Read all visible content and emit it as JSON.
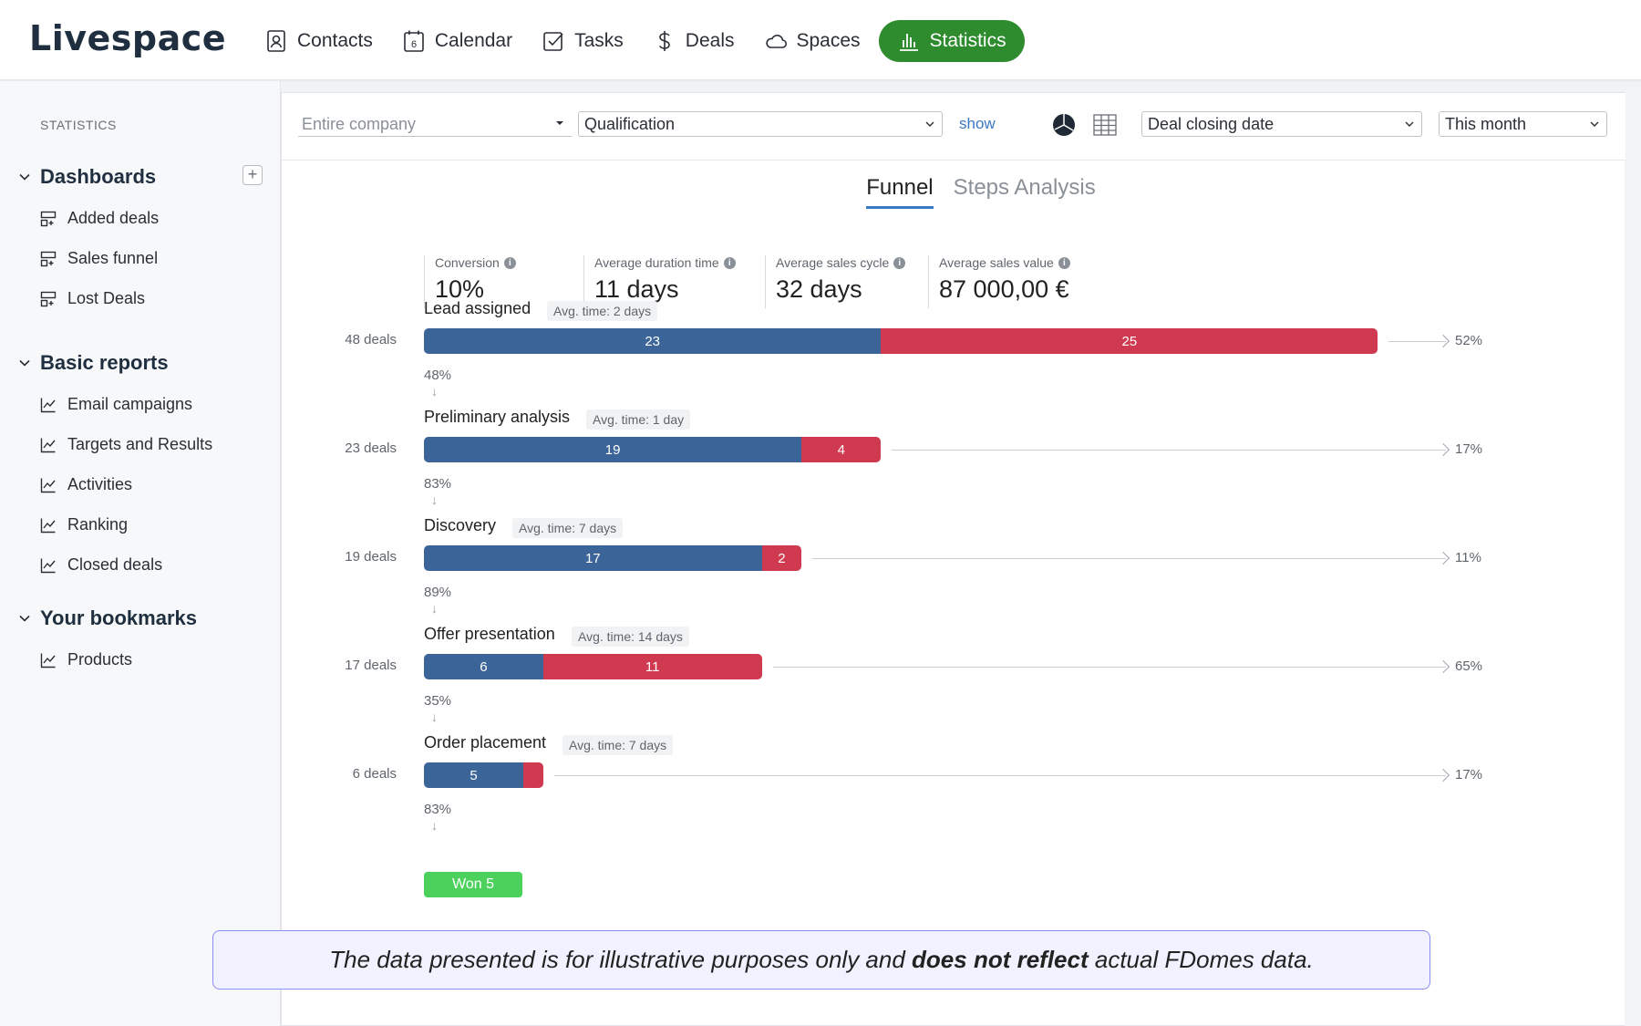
{
  "app": {
    "logo": "Livespace"
  },
  "nav": [
    {
      "label": "Contacts",
      "icon": "contacts-icon"
    },
    {
      "label": "Calendar",
      "icon": "calendar-icon"
    },
    {
      "label": "Tasks",
      "icon": "tasks-icon"
    },
    {
      "label": "Deals",
      "icon": "dollar-icon"
    },
    {
      "label": "Spaces",
      "icon": "cloud-icon"
    },
    {
      "label": "Statistics",
      "icon": "bar-chart-icon",
      "active": true
    }
  ],
  "sidebar": {
    "heading": "STATISTICS",
    "groups": [
      {
        "title": "Dashboards",
        "items": [
          "Added deals",
          "Sales funnel",
          "Lost Deals"
        ]
      },
      {
        "title": "Basic reports",
        "items": [
          "Email campaigns",
          "Targets and Results",
          "Activities",
          "Ranking",
          "Closed deals"
        ]
      },
      {
        "title": "Your bookmarks",
        "items": [
          "Products"
        ]
      }
    ]
  },
  "filters": {
    "company_placeholder": "Entire company",
    "pipeline": "Qualification",
    "show_label": "show",
    "date_field": "Deal closing date",
    "period": "This month"
  },
  "tabs": [
    "Funnel",
    "Steps Analysis"
  ],
  "stats": [
    {
      "label": "Conversion",
      "value": "10%"
    },
    {
      "label": "Average duration time",
      "value": "11 days"
    },
    {
      "label": "Average sales cycle",
      "value": "32 days"
    },
    {
      "label": "Average sales value",
      "value": "87 000,00 €"
    }
  ],
  "chart_data": {
    "type": "bar",
    "title": "Funnel",
    "categories": [
      "Lead assigned",
      "Preliminary analysis",
      "Discovery",
      "Offer presentation",
      "Order placement"
    ],
    "deals_labels": [
      "48 deals",
      "23 deals",
      "19 deals",
      "17 deals",
      "6 deals"
    ],
    "avg_time": [
      "Avg. time: 2 days",
      "Avg. time: 1 day",
      "Avg. time: 7 days",
      "Avg. time: 14 days",
      "Avg. time: 7 days"
    ],
    "series": [
      {
        "name": "",
        "color": "#3b6499",
        "values": [
          23,
          19,
          17,
          6,
          5
        ]
      },
      {
        "name": "",
        "color": "#d03a50",
        "values": [
          25,
          4,
          2,
          11,
          1
        ]
      }
    ],
    "series_labels": [
      [
        "23",
        "19",
        "17",
        "6",
        "5"
      ],
      [
        "25",
        "4",
        "2",
        "11",
        ""
      ]
    ],
    "loss_pct": [
      "52%",
      "17%",
      "11%",
      "65%",
      "17%"
    ],
    "conversion_pct": [
      "48%",
      "83%",
      "89%",
      "35%",
      "83%"
    ],
    "won_label": "Won 5"
  },
  "disclaimer": {
    "pre": "The data presented is for illustrative purposes only and ",
    "bold": "does not reflect",
    "post": " actual FDomes data."
  }
}
